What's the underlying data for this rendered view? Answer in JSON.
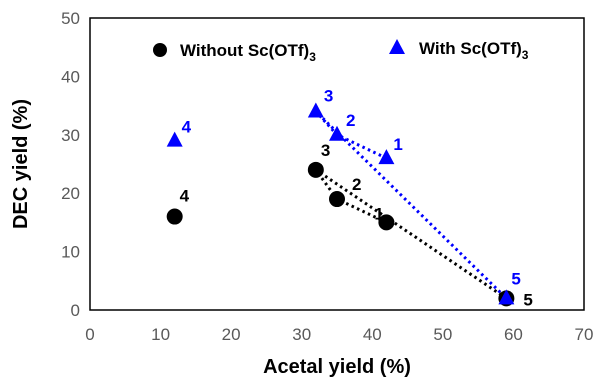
{
  "chart_data": {
    "type": "scatter",
    "xlabel": "Acetal yield (%)",
    "ylabel": "DEC yield (%)",
    "xlim": [
      0,
      70
    ],
    "ylim": [
      0,
      50
    ],
    "xticks": [
      "0",
      "10",
      "20",
      "30",
      "40",
      "50",
      "60",
      "70"
    ],
    "yticks": [
      "0",
      "10",
      "20",
      "30",
      "40",
      "50"
    ],
    "grid": false,
    "legend_position": "top",
    "series": [
      {
        "name_main": "Without Sc(OTf)",
        "name_sub": "3",
        "color": "#000000",
        "marker": "circle",
        "x": [
          42,
          35,
          32,
          12,
          59
        ],
        "y": [
          15,
          19,
          24,
          16,
          2
        ],
        "labels": [
          "1",
          "2",
          "3",
          "4",
          "5"
        ],
        "trendline_points": [
          1,
          2,
          3,
          5
        ]
      },
      {
        "name_main": "With Sc(OTf)",
        "name_sub": "3",
        "color": "#0000FF",
        "marker": "triangle",
        "x": [
          42,
          35,
          32,
          12,
          59
        ],
        "y": [
          26,
          30,
          34,
          29,
          2
        ],
        "labels": [
          "1",
          "2",
          "3",
          "4",
          "5"
        ],
        "trendline_points": [
          1,
          2,
          3,
          5
        ]
      }
    ]
  }
}
